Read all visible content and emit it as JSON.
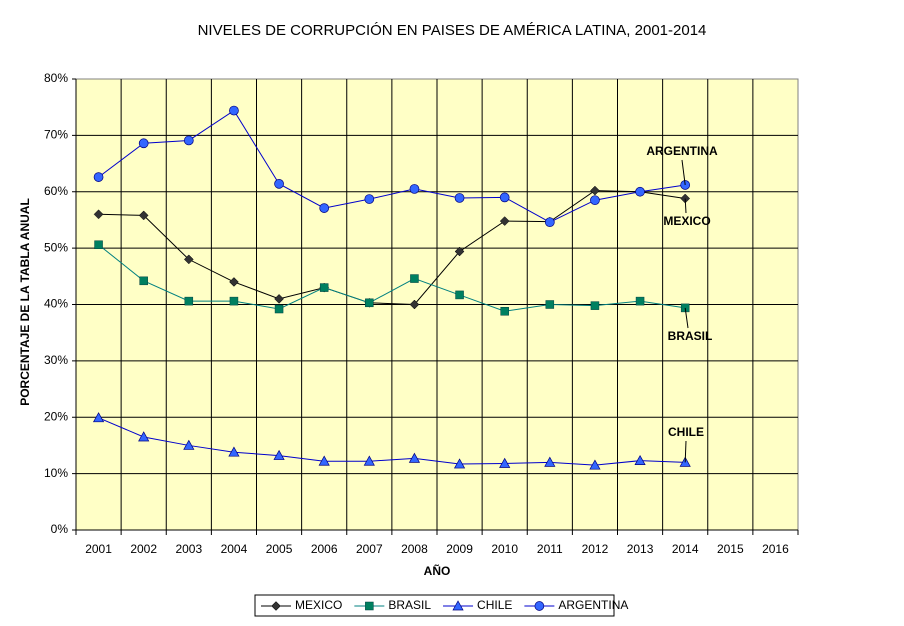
{
  "chart_data": {
    "type": "line",
    "title": "NIVELES DE CORRUPCIÓN EN  PAISES DE AMÉRICA LATINA, 2001-2014",
    "x_label": "AÑO",
    "y_label": "PORCENTAJE DE LA TABLA ANUAL",
    "categories": [
      "2001",
      "2002",
      "2003",
      "2004",
      "2005",
      "2006",
      "2007",
      "2008",
      "2009",
      "2010",
      "2011",
      "2012",
      "2013",
      "2014",
      "2015",
      "2016"
    ],
    "ylim": [
      0,
      80
    ],
    "yticks": [
      {
        "value": 0,
        "label": "0%"
      },
      {
        "value": 10,
        "label": "10%"
      },
      {
        "value": 20,
        "label": "20%"
      },
      {
        "value": 30,
        "label": "30%"
      },
      {
        "value": 40,
        "label": "40%"
      },
      {
        "value": 50,
        "label": "50%"
      },
      {
        "value": 60,
        "label": "60%"
      },
      {
        "value": 70,
        "label": "70%"
      },
      {
        "value": 80,
        "label": "80%"
      }
    ],
    "grid": true,
    "series": [
      {
        "name": "MEXICO",
        "color": "#000000",
        "marker": "diamond",
        "marker_color": "#333333",
        "values": [
          56,
          55.8,
          48,
          44,
          41,
          43,
          40.3,
          40,
          49.4,
          54.8,
          54.7,
          60.2,
          60,
          58.8,
          null,
          null
        ]
      },
      {
        "name": "BRASIL",
        "color": "#008080",
        "marker": "square",
        "marker_color": "#008060",
        "values": [
          50.6,
          44.2,
          40.6,
          40.6,
          39.2,
          43,
          40.3,
          44.6,
          41.7,
          38.8,
          40,
          39.8,
          40.6,
          39.4,
          null,
          null
        ]
      },
      {
        "name": "CHILE",
        "color": "#0000cc",
        "marker": "triangle",
        "marker_color": "#3366ff",
        "values": [
          19.9,
          16.5,
          15,
          13.8,
          13.2,
          12.2,
          12.2,
          12.7,
          11.7,
          11.8,
          12,
          11.5,
          12.3,
          12,
          null,
          null
        ]
      },
      {
        "name": "ARGENTINA",
        "color": "#0000cc",
        "marker": "circle",
        "marker_color": "#3366ff",
        "values": [
          62.6,
          68.6,
          69.1,
          74.4,
          61.4,
          57.1,
          58.7,
          60.5,
          58.9,
          59,
          54.6,
          58.5,
          60,
          61.2,
          null,
          null
        ]
      }
    ],
    "annotations": [
      "ARGENTINA",
      "MEXICO",
      "BRASIL",
      "CHILE"
    ],
    "legend": "bottom"
  }
}
